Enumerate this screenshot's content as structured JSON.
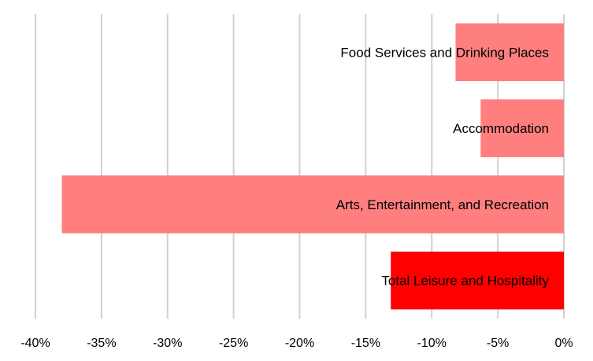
{
  "chart_data": {
    "type": "bar",
    "orientation": "horizontal",
    "categories": [
      "Food Services and Drinking Places",
      "Accommodation",
      "Arts, Entertainment, and Recreation",
      "Total Leisure and Hospitality"
    ],
    "values": [
      -8.2,
      -6.3,
      -38.0,
      -13.1
    ],
    "value_unit": "%",
    "xlim": [
      -40,
      0
    ],
    "xticks": [
      -40,
      -35,
      -30,
      -25,
      -20,
      -15,
      -10,
      -5,
      0
    ],
    "xtick_labels": [
      "-40%",
      "-35%",
      "-30%",
      "-25%",
      "-20%",
      "-15%",
      "-10%",
      "-5%",
      "0%"
    ],
    "colors": [
      "#ff7f7f",
      "#ff7f7f",
      "#ff7f7f",
      "#ff0000"
    ],
    "gridlines": true,
    "legend": false,
    "title": "",
    "xlabel": "",
    "ylabel": ""
  }
}
